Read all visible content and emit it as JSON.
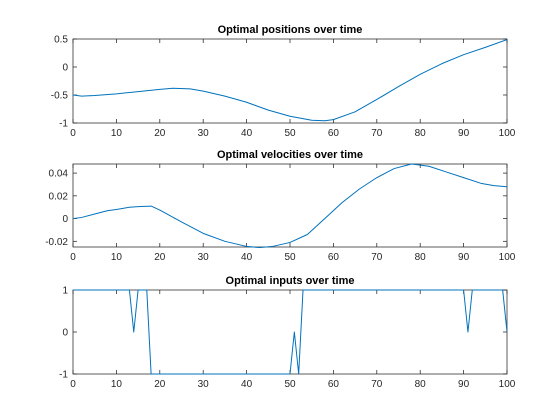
{
  "chart_data": [
    {
      "type": "line",
      "title": "Optimal positions over time",
      "xlabel": "",
      "ylabel": "",
      "xlim": [
        0,
        100
      ],
      "ylim": [
        -1,
        0.5
      ],
      "xticks": [
        0,
        10,
        20,
        30,
        40,
        50,
        60,
        70,
        80,
        90,
        100
      ],
      "yticks": [
        -1,
        -0.5,
        0,
        0.5
      ],
      "ytick_labels": [
        "-1",
        "-0.5",
        "0",
        "0.5"
      ],
      "grid": false,
      "series": [
        {
          "color": "#0072BD",
          "x": [
            0,
            2,
            5,
            10,
            15,
            20,
            23,
            27,
            30,
            35,
            40,
            45,
            50,
            55,
            58,
            60,
            65,
            70,
            75,
            80,
            85,
            90,
            95,
            100
          ],
          "y": [
            -0.5,
            -0.52,
            -0.51,
            -0.48,
            -0.44,
            -0.4,
            -0.38,
            -0.39,
            -0.43,
            -0.52,
            -0.63,
            -0.77,
            -0.88,
            -0.95,
            -0.96,
            -0.94,
            -0.8,
            -0.58,
            -0.35,
            -0.13,
            0.06,
            0.22,
            0.35,
            0.49
          ]
        }
      ]
    },
    {
      "type": "line",
      "title": "Optimal velocities over time",
      "xlabel": "",
      "ylabel": "",
      "xlim": [
        0,
        100
      ],
      "ylim": [
        -0.025,
        0.048
      ],
      "xticks": [
        0,
        10,
        20,
        30,
        40,
        50,
        60,
        70,
        80,
        90,
        100
      ],
      "yticks": [
        -0.02,
        0,
        0.02,
        0.04
      ],
      "ytick_labels": [
        "-0.02",
        "0",
        "0.02",
        "0.04"
      ],
      "grid": false,
      "series": [
        {
          "color": "#0072BD",
          "x": [
            0,
            2,
            5,
            8,
            10,
            13,
            15,
            18,
            20,
            25,
            30,
            35,
            40,
            43,
            46,
            50,
            54,
            58,
            62,
            66,
            70,
            74,
            78,
            82,
            86,
            90,
            94,
            97,
            100
          ],
          "y": [
            0,
            0.001,
            0.004,
            0.007,
            0.008,
            0.01,
            0.0105,
            0.011,
            0.0075,
            -0.003,
            -0.013,
            -0.02,
            -0.0245,
            -0.0255,
            -0.0245,
            -0.021,
            -0.014,
            0.0,
            0.014,
            0.026,
            0.036,
            0.044,
            0.048,
            0.046,
            0.041,
            0.036,
            0.031,
            0.029,
            0.028
          ]
        }
      ]
    },
    {
      "type": "line",
      "title": "Optimal inputs over time",
      "xlabel": "",
      "ylabel": "",
      "xlim": [
        0,
        100
      ],
      "ylim": [
        -1,
        1
      ],
      "xticks": [
        0,
        10,
        20,
        30,
        40,
        50,
        60,
        70,
        80,
        90,
        100
      ],
      "yticks": [
        -1,
        0,
        1
      ],
      "ytick_labels": [
        "-1",
        "0",
        "1"
      ],
      "grid": false,
      "series": [
        {
          "color": "#0072BD",
          "x": [
            0,
            13,
            14,
            15,
            17,
            18,
            50,
            51,
            52,
            53,
            90,
            91,
            92,
            99,
            100
          ],
          "y": [
            1,
            1,
            0,
            1,
            1,
            -1,
            -1,
            0,
            -1,
            1,
            1,
            0,
            1,
            1,
            0
          ]
        }
      ]
    }
  ]
}
